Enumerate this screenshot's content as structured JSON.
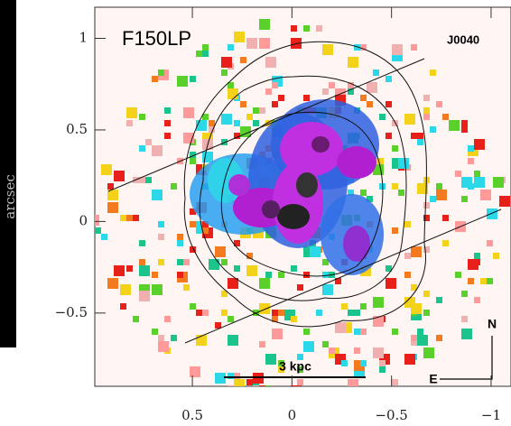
{
  "chart_data": {
    "type": "image",
    "title": "F150LP",
    "object": "J0040",
    "ylabel": "arcsec",
    "scale_label": "3 kpc",
    "north_label": "N",
    "east_label": "E",
    "xlim": [
      0.99,
      -1.1
    ],
    "ylim": [
      -0.9,
      1.17
    ],
    "xticks": [
      0.5,
      0,
      {
        "value": -0.5,
        "label": "−0.5"
      },
      {
        "value": -1,
        "label": "−1"
      }
    ],
    "yticks": [
      1,
      0.5,
      0,
      {
        "value": -0.5,
        "label": "−0.5"
      }
    ]
  }
}
